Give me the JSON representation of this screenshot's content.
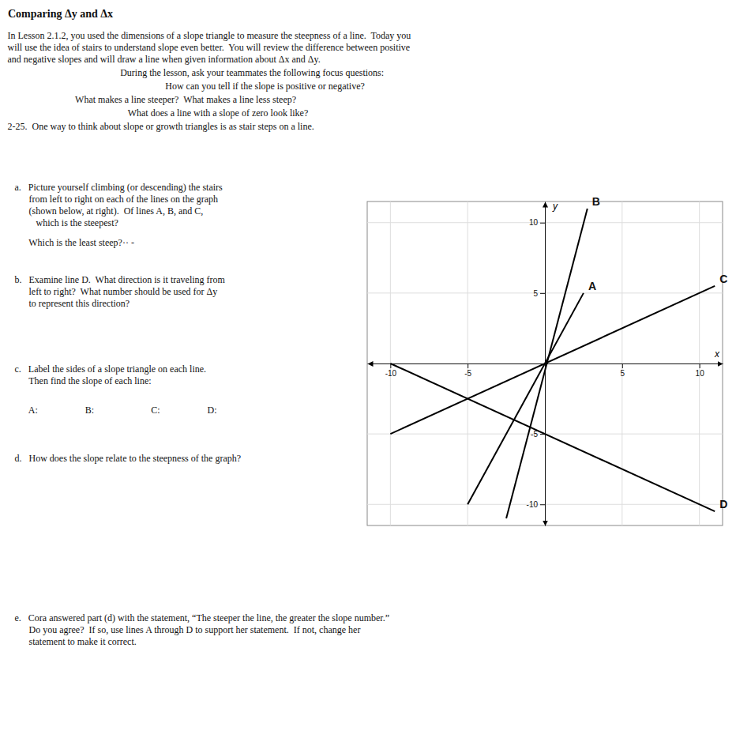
{
  "chart_data": {
    "type": "line",
    "title": "Comparing Δy and Δx",
    "annotations": [
      "In Lesson 2.1.2, you used the dimensions of a slope triangle to measure the steepness of a line.  Today you\nwill use the idea of stairs to understand slope even better.  You will review the difference between positive\nand negative slopes and will draw a line when given information about Δx and Δy.",
      "During the lesson, ask your teammates the following focus questions:",
      "How can you tell if the slope is positive or negative?",
      "What makes a line steeper?  What makes a line less steep?",
      "What does a line with a slope of zero look like?",
      "2-25.  One way to think about slope or growth triangles is as stair steps on a line.",
      "   a.   Picture yourself climbing (or descending) the stairs\n         from left to right on each of the lines on the graph\n         (shown below, at right).  Of lines A, B, and C,\n            which is the steepest?",
      "         Which is the least steep?·· -",
      "   b.   Examine line D.  What direction is it traveling from\n         left to right?  What number should be used for Δy\n         to represent this direction?",
      "   c.   Label the sides of a slope triangle on each line.\n         Then find the slope of each line:",
      "         A:                    B:                        C:                    D:",
      "   d.   How does the slope relate to the steepness of the graph?",
      "   e.   Cora answered part (d) with the statement, “The steeper the line, the greater the slope number.”\n         Do you agree?  If so, use lines A through D to support her statement.  If not, change her\n         statement to make it correct."
    ],
    "xlabel": "x",
    "ylabel": "y",
    "xlim": [
      -11.5,
      11.5
    ],
    "ylim": [
      -11.5,
      11.5
    ],
    "xticks": [
      -10,
      -5,
      5,
      10
    ],
    "yticks": [
      -10,
      -5,
      5,
      10
    ],
    "grid": true,
    "series": [
      {
        "name": "A",
        "color": "#000000",
        "x": [
          -5.0,
          2.5
        ],
        "values": [
          -10.0,
          5.0
        ]
      },
      {
        "name": "B",
        "color": "#000000",
        "x": [
          -2.5,
          2.75
        ],
        "values": [
          -11.0,
          11.0
        ]
      },
      {
        "name": "C",
        "color": "#000000",
        "x": [
          -10.0,
          11.0
        ],
        "values": [
          -5.0,
          5.5
        ]
      },
      {
        "name": "D",
        "color": "#000000",
        "x": [
          -10.0,
          11.0
        ],
        "values": [
          0.0,
          -10.5
        ]
      }
    ]
  }
}
